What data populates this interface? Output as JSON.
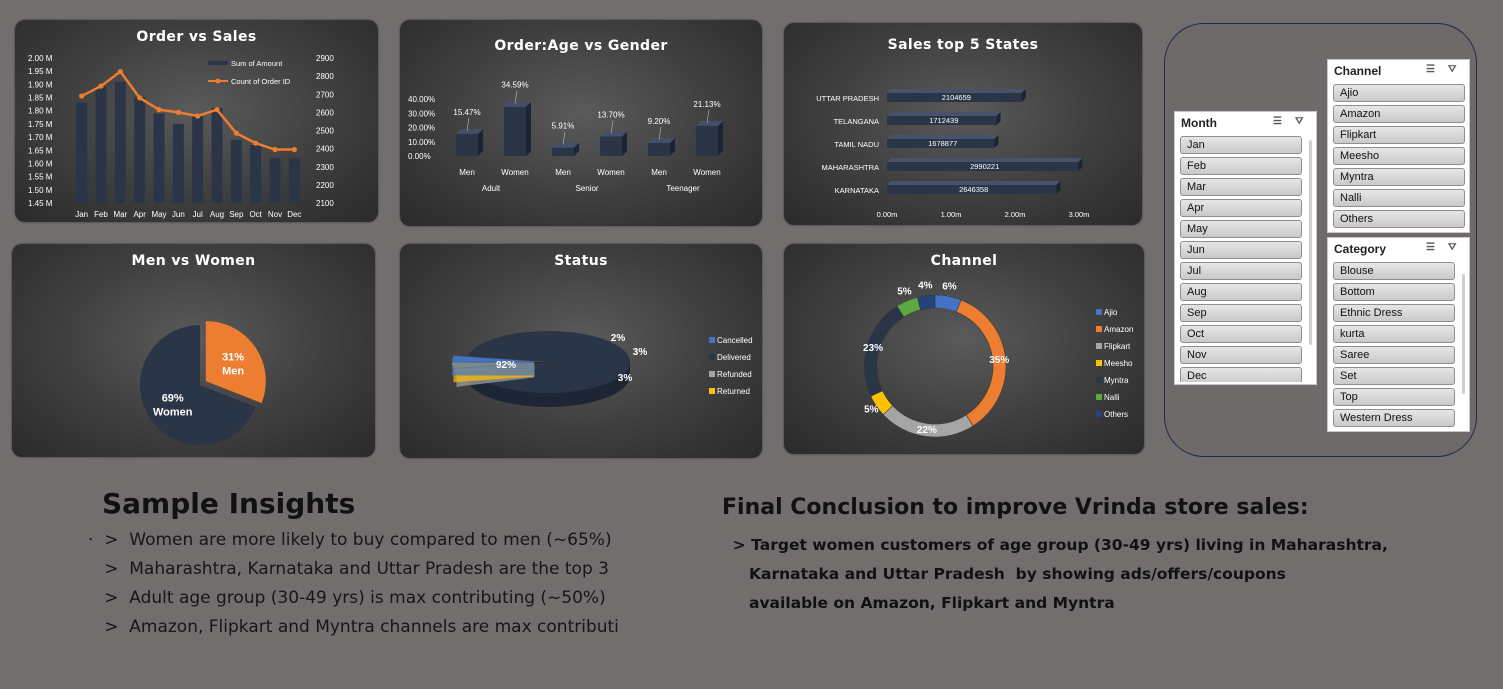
{
  "chart_data": [
    {
      "type": "bar-line",
      "title": "Order vs Sales",
      "categories": [
        "Jan",
        "Feb",
        "Mar",
        "Apr",
        "May",
        "Jun",
        "Jul",
        "Aug",
        "Sep",
        "Oct",
        "Nov",
        "Dec"
      ],
      "series": [
        {
          "name": "Sum of Amount",
          "type": "bar",
          "axis": "left",
          "values": [
            1.83,
            1.89,
            1.91,
            1.85,
            1.79,
            1.75,
            1.78,
            1.81,
            1.69,
            1.67,
            1.62,
            1.62
          ]
        },
        {
          "name": "Count of Order ID",
          "type": "line",
          "axis": "right",
          "values": [
            2690,
            2745,
            2825,
            2680,
            2615,
            2600,
            2580,
            2615,
            2485,
            2430,
            2395,
            2395
          ]
        }
      ],
      "ylim_left": [
        1.45,
        2.0
      ],
      "yticks_left": [
        "2.00 M",
        "1.95 M",
        "1.90 M",
        "1.85 M",
        "1.80 M",
        "1.75 M",
        "1.70 M",
        "1.65 M",
        "1.60 M",
        "1.55 M",
        "1.50 M",
        "1.45 M"
      ],
      "ylim_right": [
        2100,
        2900
      ],
      "yticks_right": [
        "2900",
        "2800",
        "2700",
        "2600",
        "2500",
        "2400",
        "2300",
        "2200",
        "2100"
      ],
      "legend": "top-right",
      "colors": {
        "bar": "#2b3548",
        "line": "#ed7d31"
      }
    },
    {
      "type": "bar",
      "title": "Order:Age vs Gender",
      "groups": [
        {
          "label": "Adult",
          "bars": [
            {
              "label": "Men",
              "value": 15.47,
              "text": "15.47%"
            },
            {
              "label": "Women",
              "value": 34.59,
              "text": "34.59%"
            }
          ]
        },
        {
          "label": "Senior",
          "bars": [
            {
              "label": "Men",
              "value": 5.91,
              "text": "5.91%"
            },
            {
              "label": "Women",
              "value": 13.7,
              "text": "13.70%"
            }
          ]
        },
        {
          "label": "Teenager",
          "bars": [
            {
              "label": "Men",
              "value": 9.2,
              "text": "9.20%"
            },
            {
              "label": "Women",
              "value": 21.13,
              "text": "21.13%"
            }
          ]
        }
      ],
      "ylim": [
        0,
        40
      ],
      "yticks": [
        "40.00%",
        "30.00%",
        "20.00%",
        "10.00%",
        "0.00%"
      ],
      "color": "#2b3548"
    },
    {
      "type": "hbar",
      "title": "Sales top 5 States",
      "categories": [
        "UTTAR PRADESH",
        "TELANGANA",
        "TAMIL NADU",
        "MAHARASHTRA",
        "KARNATAKA"
      ],
      "values": [
        2104659,
        1712439,
        1678877,
        2990221,
        2646358
      ],
      "labels": [
        "2104659",
        "1712439",
        "1678877",
        "2990221",
        "2646358"
      ],
      "xlim": [
        0,
        3000000
      ],
      "xticks": [
        "0.00m",
        "1.00m",
        "2.00m",
        "3.00m"
      ],
      "color": "#2b3548"
    },
    {
      "type": "pie",
      "title": "Men vs Women",
      "slices": [
        {
          "label": "Men",
          "value": 31,
          "text": "31%",
          "color": "#ed7d31"
        },
        {
          "label": "Women",
          "value": 69,
          "text": "69%",
          "color": "#2b3548"
        }
      ]
    },
    {
      "type": "pie",
      "title": "Status",
      "slices": [
        {
          "label": "Cancelled",
          "value": 3,
          "text": "3%",
          "color": "#4472c4"
        },
        {
          "label": "Delivered",
          "value": 92,
          "text": "92%",
          "color": "#2b3548"
        },
        {
          "label": "Refunded",
          "value": 2,
          "text": "2%",
          "color": "#a5a5a5"
        },
        {
          "label": "Returned",
          "value": 3,
          "text": "3%",
          "color": "#ffc000"
        }
      ],
      "legend": "right"
    },
    {
      "type": "pie",
      "title": "Channel",
      "slices": [
        {
          "label": "Ajio",
          "value": 6,
          "text": "6%",
          "color": "#4472c4"
        },
        {
          "label": "Amazon",
          "value": 35,
          "text": "35%",
          "color": "#ed7d31"
        },
        {
          "label": "Flipkart",
          "value": 22,
          "text": "22%",
          "color": "#a5a5a5"
        },
        {
          "label": "Meesho",
          "value": 5,
          "text": "5%",
          "color": "#ffc000"
        },
        {
          "label": "Myntra",
          "value": 23,
          "text": "23%",
          "color": "#2b3548"
        },
        {
          "label": "Nalli",
          "value": 5,
          "text": "5%",
          "color": "#5fa83f"
        },
        {
          "label": "Others",
          "value": 4,
          "text": "4%",
          "color": "#26447a"
        }
      ],
      "legend": "right"
    }
  ],
  "slicers": {
    "month": {
      "title": "Month",
      "items": [
        "Jan",
        "Feb",
        "Mar",
        "Apr",
        "May",
        "Jun",
        "Jul",
        "Aug",
        "Sep",
        "Oct",
        "Nov",
        "Dec"
      ]
    },
    "channel": {
      "title": "Channel",
      "items": [
        "Ajio",
        "Amazon",
        "Flipkart",
        "Meesho",
        "Myntra",
        "Nalli",
        "Others"
      ]
    },
    "category": {
      "title": "Category",
      "items": [
        "Blouse",
        "Bottom",
        "Ethnic Dress",
        "kurta",
        "Saree",
        "Set",
        "Top",
        "Western Dress"
      ]
    }
  },
  "insights": {
    "title": "Sample Insights",
    "lines": [
      "·  >  Women are more likely to buy compared to men (~65%)",
      "   >  Maharashtra, Karnataka and Uttar Pradesh are the top 3",
      "   >  Adult age group (30-49 yrs) is max contributing (~50%)",
      "   >  Amazon, Flipkart and Myntra channels are max contributi"
    ]
  },
  "conclusion": {
    "title": "Final Conclusion to improve Vrinda store sales:",
    "lines": [
      "  > Target women customers of age group (30-49 yrs) living in Maharashtra,",
      "     Karnataka and Uttar Pradesh  by showing ads/offers/coupons",
      "     available on Amazon, Flipkart and Myntra"
    ]
  }
}
